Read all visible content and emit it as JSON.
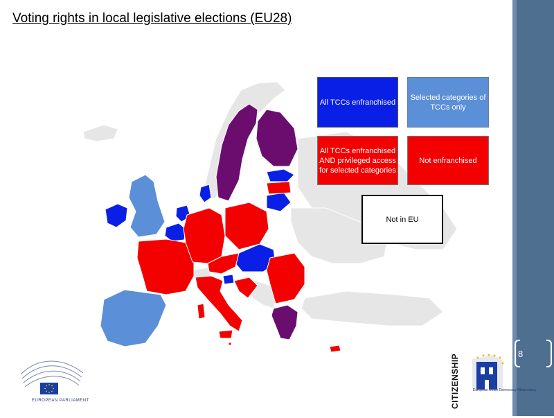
{
  "title": "Voting rights in local legislative elections (EU28)",
  "legend": {
    "all_tccs": "All TCCs enfranchised",
    "selected": "Selected categories of TCCs only",
    "privileged": "All TCCs enfranchised AND privileged access for selected categories",
    "not_enfranchised": "Not enfranchised",
    "not_in_eu": "Not in EU"
  },
  "colors": {
    "all_tccs": "#0a1fe6",
    "selected": "#5b8fd8",
    "privileged": "#6a0d6e",
    "not_enfranchised": "#f30000",
    "not_in_eu": "#ffffff",
    "non_eu_land": "#e6e6e6"
  },
  "page_number": "8",
  "logos": {
    "european_parliament": "EUROPEAN PARLIAMENT",
    "citizenship": "CITIZENSHIP",
    "observatory": "European Union Democracy Observatory"
  }
}
